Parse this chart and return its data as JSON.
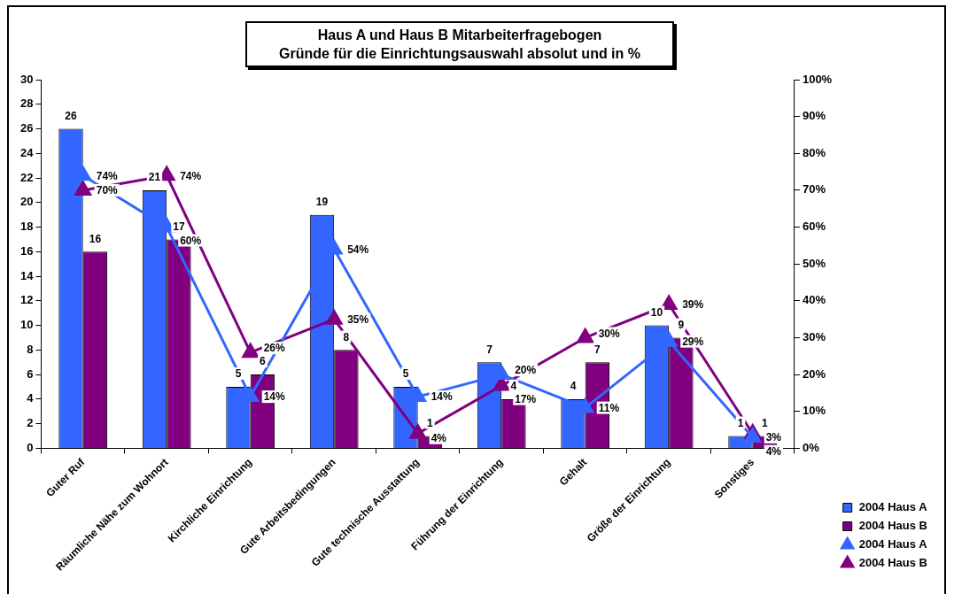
{
  "chart_data": {
    "type": "bar",
    "title": "Haus A und Haus B Mitarbeiterfragebogen\nGründe für die Einrichtungsauswahl absolut und in %",
    "categories": [
      "Guter Ruf",
      "Räumliche Nähe zum Wohnort",
      "Kirchliche Einrichtung",
      "Gute Arbeitsbedingungen",
      "Gute technische Ausstattung",
      "Führung der Einrichtung",
      "Gehalt",
      "Größe der Einrichtung",
      "Sonstiges"
    ],
    "series": [
      {
        "name": "2004 Haus A",
        "color": "#3366ff",
        "values": [
          26,
          21,
          5,
          19,
          5,
          7,
          4,
          10,
          1
        ],
        "value_labels": [
          "26",
          "21",
          "5",
          "19",
          "5",
          "7",
          "4",
          "10",
          "1"
        ]
      },
      {
        "name": "2004 Haus B",
        "color": "#800080",
        "values": [
          16,
          17,
          6,
          8,
          1,
          4,
          7,
          9,
          1
        ],
        "value_labels": [
          "16",
          "17",
          "6",
          "8",
          "1",
          "4",
          "7",
          "9",
          "1"
        ]
      },
      {
        "name": "2004 Haus A",
        "type": "line",
        "axis": "y2",
        "color": "#3366ff",
        "values": [
          74,
          60,
          14,
          54,
          14,
          20,
          11,
          29,
          3
        ],
        "value_labels": [
          "74%",
          "60%",
          "14%",
          "54%",
          "14%",
          "20%",
          "11%",
          "29%",
          "3%"
        ]
      },
      {
        "name": "2004 Haus B",
        "type": "line",
        "axis": "y2",
        "color": "#800080",
        "values": [
          70,
          74,
          26,
          35,
          4,
          17,
          30,
          39,
          4
        ],
        "value_labels": [
          "70%",
          "74%",
          "26%",
          "35%",
          "4%",
          "17%",
          "30%",
          "39%",
          "4%"
        ]
      }
    ],
    "ylim": [
      0,
      30
    ],
    "yticks": [
      0,
      2,
      4,
      6,
      8,
      10,
      12,
      14,
      16,
      18,
      20,
      22,
      24,
      26,
      28,
      30
    ],
    "y2lim": [
      0,
      100
    ],
    "y2ticks": [
      {
        "value": 0,
        "label": "0%"
      },
      {
        "value": 10,
        "label": "10%"
      },
      {
        "value": 20,
        "label": "20%"
      },
      {
        "value": 30,
        "label": "30%"
      },
      {
        "value": 40,
        "label": "40%"
      },
      {
        "value": 50,
        "label": "50%"
      },
      {
        "value": 60,
        "label": "60%"
      },
      {
        "value": 70,
        "label": "70%"
      },
      {
        "value": 80,
        "label": "80%"
      },
      {
        "value": 90,
        "label": "90%"
      },
      {
        "value": 100,
        "label": "100%"
      }
    ],
    "grid": false,
    "legend": "bottom right",
    "marker": "triangle",
    "line_style": "solid"
  }
}
